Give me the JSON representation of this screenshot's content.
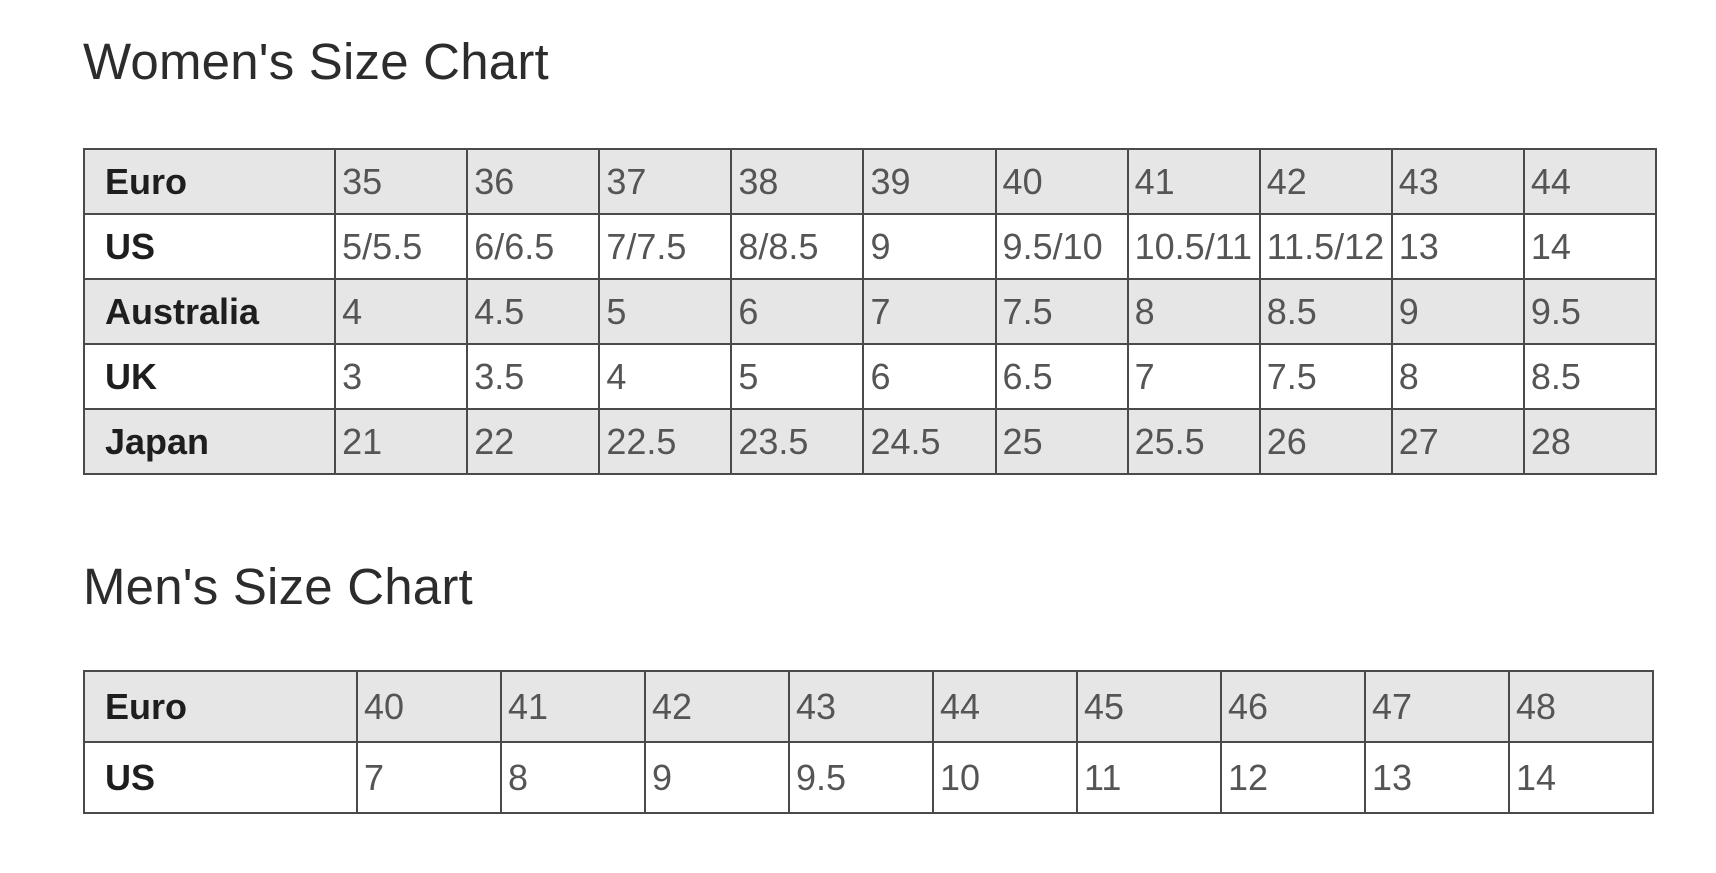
{
  "women": {
    "title": "Women's Size Chart",
    "rows": [
      {
        "label": "Euro",
        "values": [
          "35",
          "36",
          "37",
          "38",
          "39",
          "40",
          "41",
          "42",
          "43",
          "44"
        ]
      },
      {
        "label": "US",
        "values": [
          "5/5.5",
          "6/6.5",
          "7/7.5",
          "8/8.5",
          "9",
          "9.5/10",
          "10.5/11",
          "11.5/12",
          "13",
          "14"
        ]
      },
      {
        "label": "Australia",
        "values": [
          "4",
          "4.5",
          "5",
          "6",
          "7",
          "7.5",
          "8",
          "8.5",
          "9",
          "9.5"
        ]
      },
      {
        "label": "UK",
        "values": [
          "3",
          "3.5",
          "4",
          "5",
          "6",
          "6.5",
          "7",
          "7.5",
          "8",
          "8.5"
        ]
      },
      {
        "label": "Japan",
        "values": [
          "21",
          "22",
          "22.5",
          "23.5",
          "24.5",
          "25",
          "25.5",
          "26",
          "27",
          "28"
        ]
      }
    ]
  },
  "men": {
    "title": "Men's Size Chart",
    "rows": [
      {
        "label": "Euro",
        "values": [
          "40",
          "41",
          "42",
          "43",
          "44",
          "45",
          "46",
          "47",
          "48"
        ]
      },
      {
        "label": "US",
        "values": [
          "7",
          "8",
          "9",
          "9.5",
          "10",
          "11",
          "12",
          "13",
          "14"
        ]
      }
    ]
  },
  "colors": {
    "shaded_row": "#e6e6e6",
    "plain_row": "#ffffff",
    "border": "#4a4a4a"
  }
}
